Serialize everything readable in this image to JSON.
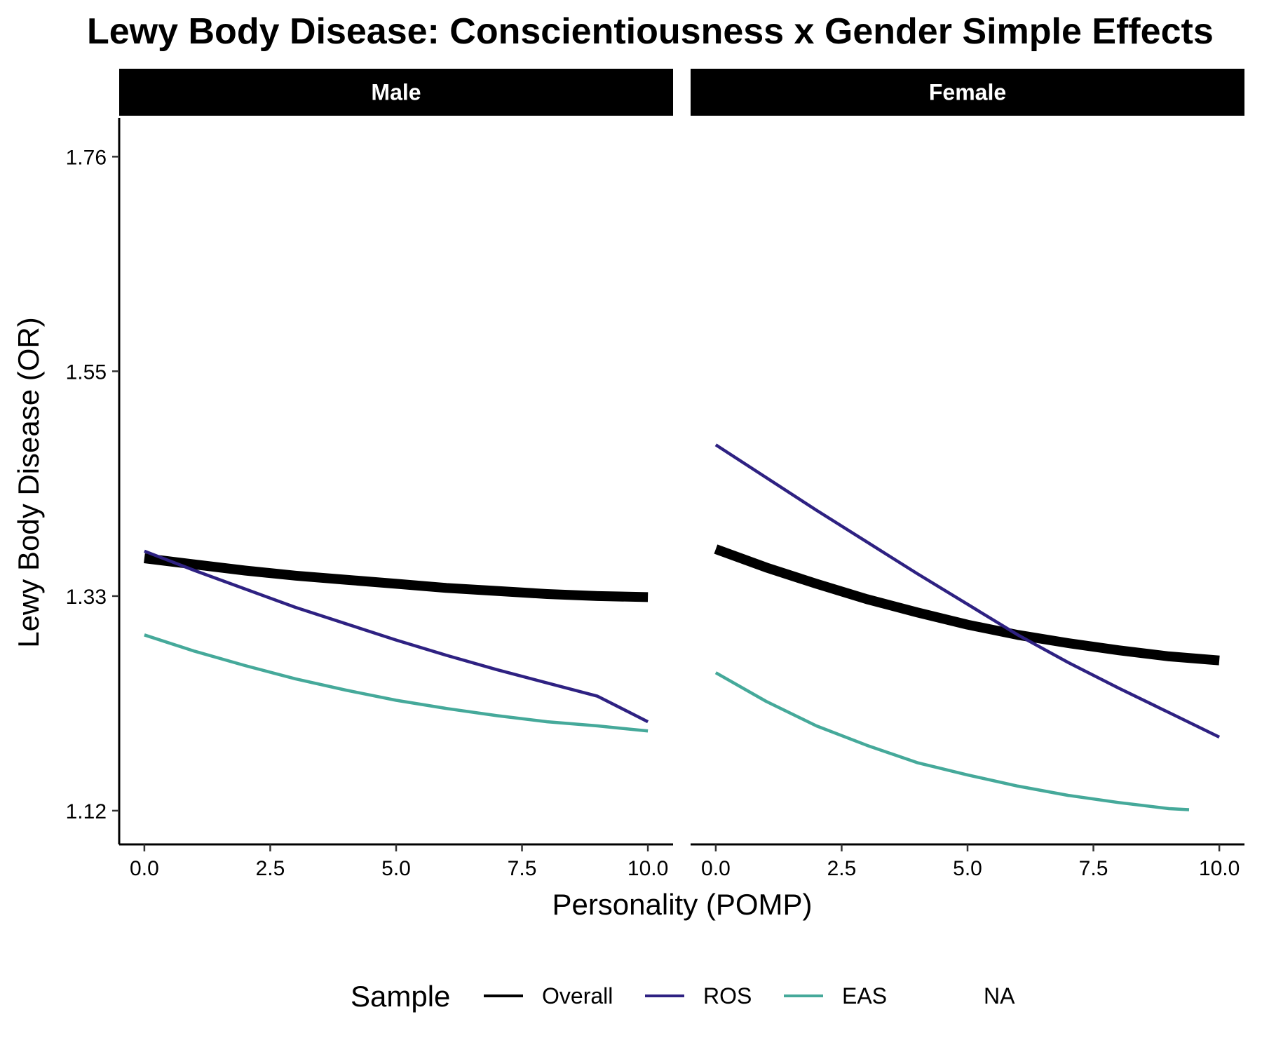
{
  "chart_data": {
    "type": "line",
    "title": "Lewy Body Disease: Conscientiousness x Gender Simple Effects",
    "xlabel": "Personality (POMP)",
    "ylabel": "Lewy Body Disease (OR)",
    "xlim": [
      -0.5,
      10.5
    ],
    "ylim": [
      1.087,
      1.798
    ],
    "x_ticks": [
      0,
      2.5,
      5,
      7.5,
      10
    ],
    "x_tick_labels": [
      "0.0",
      "2.5",
      "5.0",
      "7.5",
      "10.0"
    ],
    "y_ticks": [
      1.12,
      1.33,
      1.55,
      1.76
    ],
    "y_tick_labels": [
      "1.12",
      "1.33",
      "1.55",
      "1.76"
    ],
    "grid": false,
    "legend": {
      "title": "Sample",
      "position": "bottom",
      "entries": [
        {
          "label": "Overall",
          "color": "#000000"
        },
        {
          "label": "ROS",
          "color": "#2e2182"
        },
        {
          "label": "EAS",
          "color": "#45a99a"
        },
        {
          "label": "NA",
          "color": ""
        }
      ]
    },
    "panels": [
      {
        "name": "Male",
        "series": [
          {
            "name": "Overall",
            "color": "#000000",
            "x": [
              0,
              1,
              2,
              3,
              4,
              5,
              6,
              7,
              8,
              9,
              10
            ],
            "y": [
              1.367,
              1.361,
              1.355,
              1.35,
              1.346,
              1.342,
              1.338,
              1.335,
              1.332,
              1.33,
              1.329
            ]
          },
          {
            "name": "ROS",
            "color": "#2e2182",
            "x": [
              0,
              1,
              2,
              3,
              4,
              5,
              6,
              7,
              8,
              9,
              10
            ],
            "y": [
              1.374,
              1.355,
              1.337,
              1.319,
              1.303,
              1.287,
              1.272,
              1.258,
              1.245,
              1.232,
              1.207
            ]
          },
          {
            "name": "EAS",
            "color": "#45a99a",
            "x": [
              0,
              1,
              2,
              3,
              4,
              5,
              6,
              7,
              8,
              9,
              10
            ],
            "y": [
              1.292,
              1.276,
              1.262,
              1.249,
              1.238,
              1.228,
              1.22,
              1.213,
              1.207,
              1.203,
              1.198
            ]
          }
        ]
      },
      {
        "name": "Female",
        "series": [
          {
            "name": "Overall",
            "color": "#000000",
            "x": [
              0,
              1,
              2,
              3,
              4,
              5,
              6,
              7,
              8,
              9,
              10
            ],
            "y": [
              1.376,
              1.358,
              1.342,
              1.327,
              1.314,
              1.302,
              1.292,
              1.284,
              1.277,
              1.271,
              1.267
            ]
          },
          {
            "name": "ROS",
            "color": "#2e2182",
            "x": [
              0,
              1,
              2,
              3,
              4,
              5,
              6,
              7,
              8,
              9,
              10
            ],
            "y": [
              1.478,
              1.446,
              1.414,
              1.383,
              1.352,
              1.322,
              1.292,
              1.265,
              1.24,
              1.216,
              1.192
            ]
          },
          {
            "name": "EAS",
            "color": "#45a99a",
            "x": [
              0,
              1,
              2,
              3,
              4,
              5,
              6,
              7,
              8,
              9,
              9.4
            ],
            "y": [
              1.255,
              1.227,
              1.203,
              1.184,
              1.167,
              1.155,
              1.144,
              1.135,
              1.128,
              1.122,
              1.121
            ]
          }
        ]
      }
    ]
  }
}
